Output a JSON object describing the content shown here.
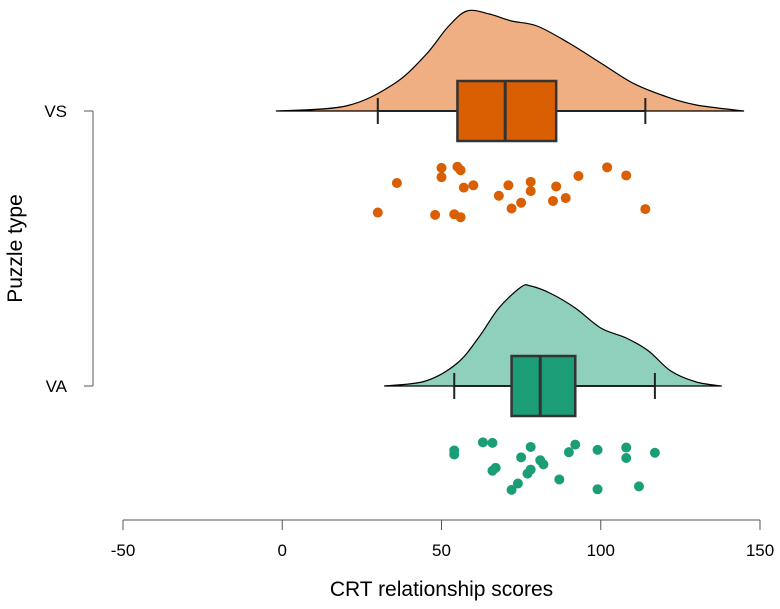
{
  "chart_data": {
    "type": "raincloud",
    "xlabel": "CRT relationship scores",
    "ylabel": "Puzzle type",
    "xlim": [
      -50,
      150
    ],
    "xticks": [
      -50,
      0,
      50,
      100,
      150
    ],
    "xtick_labels": [
      "-50",
      "0",
      "50",
      "100",
      "150"
    ],
    "grid": false,
    "groups": [
      {
        "name": "VS",
        "color": "#D95F02",
        "cloud_color": "#F0AF82",
        "density_range": [
          -2,
          145
        ],
        "density": [
          [
            -2,
            0.0
          ],
          [
            20,
            0.05
          ],
          [
            35,
            0.27
          ],
          [
            45,
            0.56
          ],
          [
            52,
            0.84
          ],
          [
            58,
            1.0
          ],
          [
            65,
            0.97
          ],
          [
            72,
            0.9
          ],
          [
            80,
            0.85
          ],
          [
            90,
            0.68
          ],
          [
            100,
            0.48
          ],
          [
            110,
            0.28
          ],
          [
            120,
            0.15
          ],
          [
            130,
            0.06
          ],
          [
            145,
            0.0
          ]
        ],
        "box": {
          "whisker_low": 30,
          "q1": 55,
          "median": 70,
          "q3": 86,
          "whisker_high": 114
        },
        "points": [
          {
            "x": 30,
            "j": 0.82
          },
          {
            "x": 36,
            "j": 0.31
          },
          {
            "x": 48,
            "j": 0.86
          },
          {
            "x": 50,
            "j": 0.05
          },
          {
            "x": 50,
            "j": 0.21
          },
          {
            "x": 54,
            "j": 0.85
          },
          {
            "x": 55,
            "j": 0.03
          },
          {
            "x": 56,
            "j": 0.09
          },
          {
            "x": 56,
            "j": 0.9
          },
          {
            "x": 57,
            "j": 0.39
          },
          {
            "x": 60,
            "j": 0.35
          },
          {
            "x": 68,
            "j": 0.53
          },
          {
            "x": 71,
            "j": 0.35
          },
          {
            "x": 72,
            "j": 0.75
          },
          {
            "x": 75,
            "j": 0.65
          },
          {
            "x": 78,
            "j": 0.29
          },
          {
            "x": 78,
            "j": 0.45
          },
          {
            "x": 85,
            "j": 0.62
          },
          {
            "x": 86,
            "j": 0.37
          },
          {
            "x": 89,
            "j": 0.57
          },
          {
            "x": 93,
            "j": 0.19
          },
          {
            "x": 102,
            "j": 0.04
          },
          {
            "x": 108,
            "j": 0.18
          },
          {
            "x": 114,
            "j": 0.76
          }
        ]
      },
      {
        "name": "VA",
        "color": "#1B9E77",
        "cloud_color": "#8FD0BD",
        "density_range": [
          32,
          138
        ],
        "density": [
          [
            32,
            0.0
          ],
          [
            45,
            0.05
          ],
          [
            55,
            0.23
          ],
          [
            62,
            0.5
          ],
          [
            68,
            0.78
          ],
          [
            75,
            0.99
          ],
          [
            78,
            1.0
          ],
          [
            84,
            0.93
          ],
          [
            92,
            0.78
          ],
          [
            100,
            0.58
          ],
          [
            108,
            0.48
          ],
          [
            115,
            0.35
          ],
          [
            122,
            0.15
          ],
          [
            130,
            0.04
          ],
          [
            138,
            0.0
          ]
        ],
        "box": {
          "whisker_low": 54,
          "q1": 72,
          "median": 81,
          "q3": 92,
          "whisker_high": 117
        },
        "points": [
          {
            "x": 54,
            "j": 0.18
          },
          {
            "x": 54,
            "j": 0.25
          },
          {
            "x": 63,
            "j": 0.04
          },
          {
            "x": 66,
            "j": 0.05
          },
          {
            "x": 66,
            "j": 0.53
          },
          {
            "x": 67,
            "j": 0.48
          },
          {
            "x": 72,
            "j": 0.86
          },
          {
            "x": 74,
            "j": 0.75
          },
          {
            "x": 75,
            "j": 0.3
          },
          {
            "x": 77,
            "j": 0.58
          },
          {
            "x": 78,
            "j": 0.51
          },
          {
            "x": 78,
            "j": 0.12
          },
          {
            "x": 81,
            "j": 0.35
          },
          {
            "x": 82,
            "j": 0.42
          },
          {
            "x": 87,
            "j": 0.68
          },
          {
            "x": 90,
            "j": 0.21
          },
          {
            "x": 92,
            "j": 0.08
          },
          {
            "x": 99,
            "j": 0.17
          },
          {
            "x": 99,
            "j": 0.85
          },
          {
            "x": 108,
            "j": 0.13
          },
          {
            "x": 108,
            "j": 0.31
          },
          {
            "x": 112,
            "j": 0.8
          },
          {
            "x": 117,
            "j": 0.22
          }
        ]
      }
    ]
  }
}
